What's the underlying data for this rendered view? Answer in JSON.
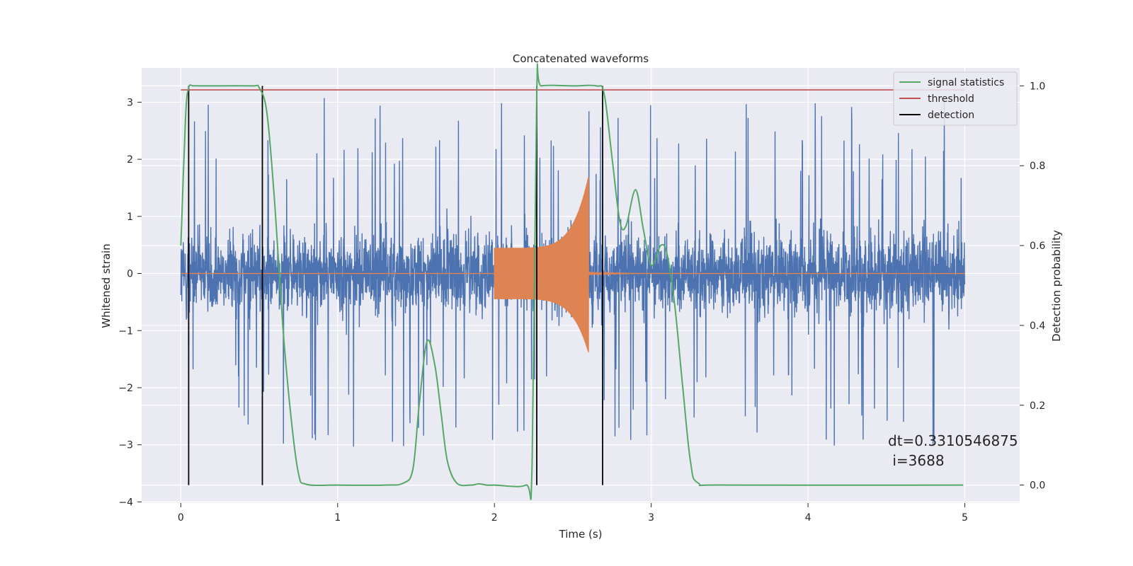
{
  "chart_data": {
    "type": "line",
    "title": "Concatenated waveforms",
    "xlabel": "Time (s)",
    "ylabel": "Whitened strain",
    "y2label": "Detection probability",
    "xlim": [
      -0.25,
      5.35
    ],
    "ylim": [
      -4.02,
      3.6
    ],
    "y2lim": [
      -0.045,
      1.045
    ],
    "xticks": [
      0,
      1,
      2,
      3,
      4,
      5
    ],
    "xtick_labels": [
      "0",
      "1",
      "2",
      "3",
      "4",
      "5"
    ],
    "yticks": [
      -4,
      -3,
      -2,
      -1,
      0,
      1,
      2,
      3
    ],
    "ytick_labels": [
      "−4",
      "−3",
      "−2",
      "−1",
      "0",
      "1",
      "2",
      "3"
    ],
    "y2ticks": [
      0.0,
      0.2,
      0.4,
      0.6,
      0.8,
      1.0
    ],
    "y2tick_labels": [
      "0.0",
      "0.2",
      "0.4",
      "0.6",
      "0.8",
      "1.0"
    ],
    "grid": true,
    "legend_position": "upper right",
    "legend": [
      {
        "label": "signal statistics",
        "color": "#55a868"
      },
      {
        "label": "threshold",
        "color": "#c44e52"
      },
      {
        "label": "detection",
        "color": "#000000"
      }
    ],
    "series": [
      {
        "name": "whitened strain",
        "axis": "left",
        "color": "#4c72b0",
        "kind": "noise",
        "x_range": [
          0,
          5
        ],
        "core_amplitude": 0.9,
        "peak_max": 3.3,
        "peak_min": -3.7
      },
      {
        "name": "injected waveform",
        "axis": "left",
        "color": "#dd8452",
        "kind": "chirp",
        "start": 2.0,
        "merger": 2.6,
        "start_amplitude": 0.45,
        "peak_upper": 1.85,
        "peak_lower": -1.5,
        "ringdown_end": 3.0
      },
      {
        "name": "signal statistics",
        "axis": "right",
        "color": "#55a868",
        "x": [
          0,
          0.03,
          0.05,
          0.08,
          0.15,
          0.45,
          0.5,
          0.55,
          0.6,
          0.65,
          0.7,
          0.75,
          0.8,
          1.0,
          1.3,
          1.42,
          1.48,
          1.52,
          1.57,
          1.62,
          1.66,
          1.7,
          1.76,
          1.85,
          1.9,
          1.95,
          2.0,
          2.2,
          2.24,
          2.27,
          2.3,
          2.5,
          2.65,
          2.7,
          2.75,
          2.8,
          2.84,
          2.9,
          2.95,
          3.0,
          3.06,
          3.1,
          3.15,
          3.2,
          3.25,
          3.3,
          3.5,
          4.99
        ],
        "y": [
          0.6,
          0.92,
          0.995,
          1.0,
          1.0,
          1.0,
          0.995,
          0.93,
          0.7,
          0.4,
          0.18,
          0.03,
          0.002,
          0.0,
          0.0,
          0.005,
          0.04,
          0.2,
          0.36,
          0.3,
          0.18,
          0.06,
          0.005,
          0.0,
          0.003,
          0.0,
          0.0,
          0.0,
          0.05,
          0.98,
          1.0,
          1.0,
          1.0,
          0.98,
          0.82,
          0.66,
          0.65,
          0.74,
          0.64,
          0.55,
          0.6,
          0.58,
          0.45,
          0.25,
          0.06,
          0.005,
          0.0,
          0.0
        ]
      },
      {
        "name": "threshold",
        "axis": "right",
        "color": "#c44e52",
        "x": [
          0,
          5
        ],
        "y": [
          0.99,
          0.99
        ]
      }
    ],
    "detections": [
      0.05,
      0.52,
      2.27,
      2.69
    ],
    "detection_range": [
      0.0,
      1.0
    ],
    "annotation": {
      "lines": [
        "dt=0.3310546875",
        " i=3688"
      ],
      "x": 4.5,
      "y": -2.95
    }
  }
}
